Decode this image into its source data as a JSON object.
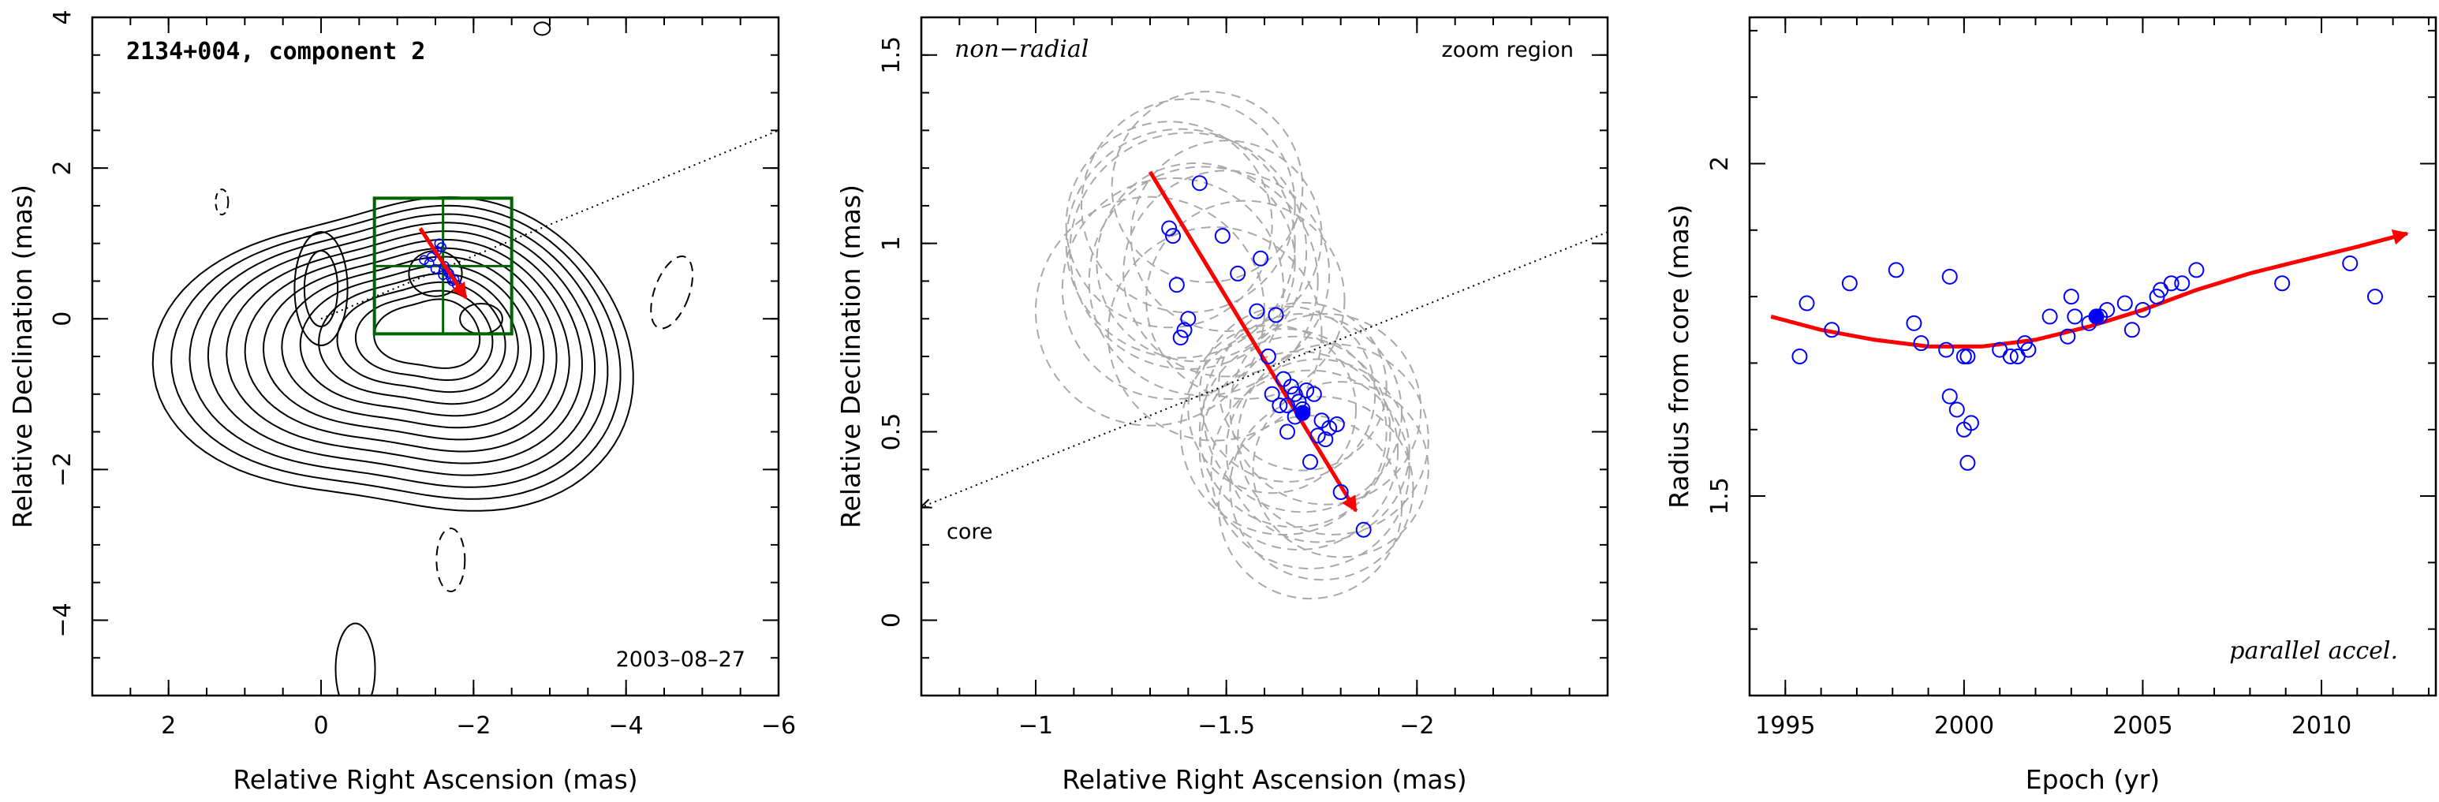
{
  "chart_data": [
    {
      "type": "scatter",
      "panel": "component-map",
      "title": "2134+004, component 2",
      "xlabel": "Relative Right Ascension (mas)",
      "ylabel": "Relative Declination (mas)",
      "xlim": [
        3,
        -6
      ],
      "ylim": [
        -5,
        4
      ],
      "xticks": [
        2,
        0,
        -2,
        -4,
        -6
      ],
      "yticks": [
        -4,
        -2,
        0,
        2,
        4
      ],
      "epoch_label": "2003–08–27",
      "contour_levels": 13,
      "zoom_box": {
        "x": [
          -0.7,
          -2.5
        ],
        "y": [
          -0.2,
          1.6
        ]
      },
      "velocity_vector": {
        "from": [
          -1.3,
          1.2
        ],
        "to": [
          -1.9,
          0.28
        ]
      },
      "radial_line": {
        "from": [
          0,
          0
        ],
        "to": [
          -6,
          2.5
        ]
      },
      "positions": {
        "x": [
          -1.35,
          -1.45,
          -1.52,
          -1.58,
          -1.62,
          -1.66,
          -1.7,
          -1.72,
          -1.78,
          -1.6,
          -1.5,
          -1.42,
          -1.55,
          -1.68,
          -1.75
        ],
        "y": [
          0.78,
          0.82,
          0.9,
          0.95,
          0.7,
          0.62,
          0.55,
          0.5,
          0.45,
          0.58,
          0.66,
          0.74,
          1.0,
          0.6,
          0.52
        ]
      }
    },
    {
      "type": "scatter",
      "panel": "zoom-region",
      "labels": {
        "top_left": "non−radial",
        "top_right": "zoom region",
        "core": "core"
      },
      "xlabel": "Relative Right Ascension (mas)",
      "ylabel": "Relative Declination (mas)",
      "xlim": [
        -0.7,
        -2.5
      ],
      "ylim": [
        -0.2,
        1.6
      ],
      "xticks": [
        -1,
        -1.5,
        -2
      ],
      "yticks": [
        0,
        0.5,
        1,
        1.5
      ],
      "velocity_vector": {
        "from": [
          -1.3,
          1.19
        ],
        "to": [
          -1.84,
          0.29
        ]
      },
      "core_line": {
        "from": [
          -2.5,
          1.03
        ],
        "to": [
          -0.7,
          0.3
        ]
      },
      "filled_point": {
        "x": -1.7,
        "y": 0.55
      },
      "x": [
        -1.43,
        -1.35,
        -1.36,
        -1.38,
        -1.37,
        -1.39,
        -1.4,
        -1.49,
        -1.53,
        -1.58,
        -1.59,
        -1.63,
        -1.61,
        -1.62,
        -1.64,
        -1.66,
        -1.67,
        -1.68,
        -1.69,
        -1.71,
        -1.73,
        -1.74,
        -1.75,
        -1.76,
        -1.77,
        -1.79,
        -1.8,
        -1.72,
        -1.66,
        -1.7,
        -1.65,
        -1.68,
        -1.86
      ],
      "y": [
        1.16,
        1.04,
        1.02,
        0.75,
        0.89,
        0.77,
        0.8,
        1.02,
        0.92,
        0.82,
        0.96,
        0.81,
        0.7,
        0.6,
        0.57,
        0.57,
        0.62,
        0.6,
        0.58,
        0.61,
        0.6,
        0.49,
        0.53,
        0.48,
        0.51,
        0.52,
        0.34,
        0.42,
        0.5,
        0.56,
        0.64,
        0.54,
        0.24
      ],
      "fit_circles": {
        "cx": [
          -1.4,
          -1.38,
          -1.42,
          -1.5,
          -1.36,
          -1.45,
          -1.3,
          -1.55,
          -1.47,
          -1.4,
          -1.35,
          -1.5,
          -1.44,
          -1.7,
          -1.68,
          -1.74,
          -1.72,
          -1.66,
          -1.78,
          -1.75,
          -1.7,
          -1.65,
          -1.8,
          -1.76,
          -1.72,
          -1.69,
          -1.62
        ],
        "cy": [
          1.1,
          1.0,
          0.95,
          0.92,
          0.88,
          1.15,
          0.82,
          0.85,
          0.76,
          0.98,
          1.05,
          1.02,
          0.9,
          0.55,
          0.5,
          0.45,
          0.4,
          0.6,
          0.48,
          0.35,
          0.62,
          0.5,
          0.4,
          0.56,
          0.3,
          0.45,
          0.56
        ],
        "r": [
          0.28,
          0.3,
          0.26,
          0.27,
          0.29,
          0.25,
          0.3,
          0.26,
          0.28,
          0.31,
          0.27,
          0.25,
          0.3,
          0.26,
          0.25,
          0.24,
          0.26,
          0.23,
          0.25,
          0.24,
          0.22,
          0.27,
          0.23,
          0.25,
          0.24,
          0.26,
          0.22
        ]
      }
    },
    {
      "type": "scatter",
      "panel": "radius-vs-epoch",
      "label": "parallel accel.",
      "xlabel": "Epoch (yr)",
      "ylabel": "Radius from core (mas)",
      "xlim": [
        1994,
        2013.2
      ],
      "ylim": [
        1.2,
        2.22
      ],
      "xticks": [
        1995,
        2000,
        2005,
        2010
      ],
      "yticks": [
        1.5,
        2
      ],
      "filled_point": {
        "x": 2003.7,
        "y": 1.77
      },
      "x": [
        1995.4,
        1995.6,
        1996.3,
        1996.8,
        1998.1,
        1998.6,
        1998.8,
        1999.5,
        1999.6,
        1999.8,
        2000.0,
        2000.1,
        2000.0,
        1999.6,
        2000.2,
        2001.0,
        2001.3,
        2001.5,
        2001.7,
        2001.8,
        2002.4,
        2002.9,
        2003.0,
        2003.1,
        2003.5,
        2003.8,
        2004.0,
        2004.5,
        2004.7,
        2005.0,
        2005.4,
        2005.5,
        2005.8,
        2006.1,
        2006.5,
        2008.9,
        2010.8,
        2011.5,
        2000.1
      ],
      "y": [
        1.71,
        1.79,
        1.75,
        1.82,
        1.84,
        1.76,
        1.73,
        1.72,
        1.83,
        1.63,
        1.6,
        1.55,
        1.71,
        1.65,
        1.61,
        1.72,
        1.71,
        1.71,
        1.73,
        1.72,
        1.77,
        1.74,
        1.8,
        1.77,
        1.76,
        1.77,
        1.78,
        1.79,
        1.75,
        1.78,
        1.8,
        1.81,
        1.82,
        1.82,
        1.84,
        1.82,
        1.85,
        1.8,
        1.71
      ],
      "fit_curve": {
        "x": [
          1994.6,
          1996,
          1997.5,
          1999,
          2000.5,
          2002,
          2003.5,
          2005,
          2006.5,
          2008,
          2009.5,
          2011,
          2012.4
        ],
        "y": [
          1.77,
          1.75,
          1.735,
          1.725,
          1.725,
          1.735,
          1.755,
          1.78,
          1.81,
          1.835,
          1.855,
          1.875,
          1.895
        ]
      }
    }
  ]
}
